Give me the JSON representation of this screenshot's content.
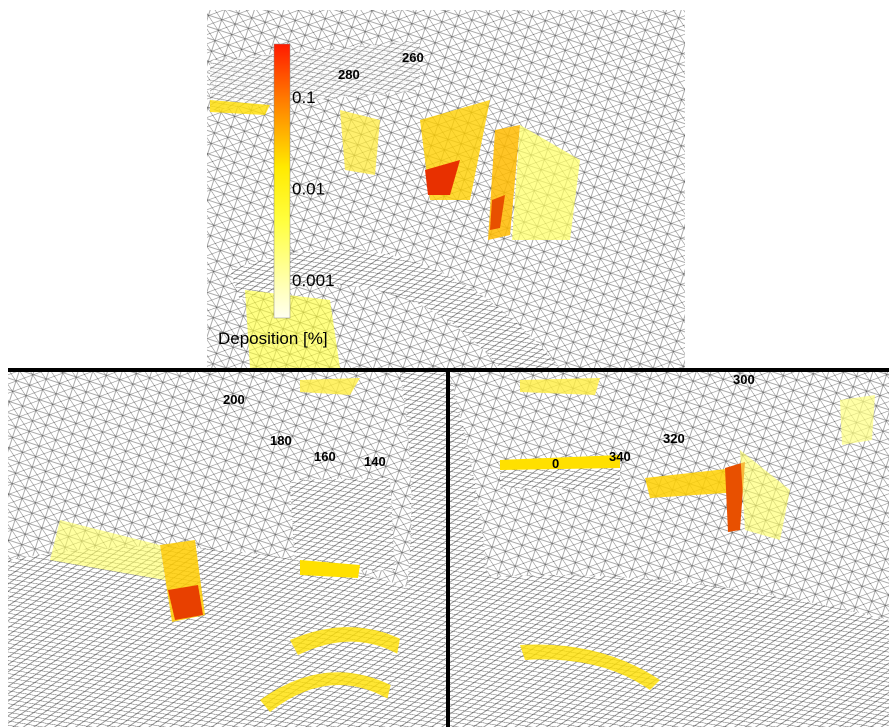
{
  "colorbar": {
    "label": "Deposition [%]",
    "ticks": [
      "0.1",
      "0.01",
      "0.001"
    ]
  },
  "panels": [
    {
      "angle_labels": [
        "260",
        "280"
      ]
    },
    {
      "angle_labels": [
        "200",
        "180",
        "160",
        "140"
      ]
    },
    {
      "angle_labels": [
        "300",
        "320",
        "340",
        "0"
      ]
    }
  ]
}
